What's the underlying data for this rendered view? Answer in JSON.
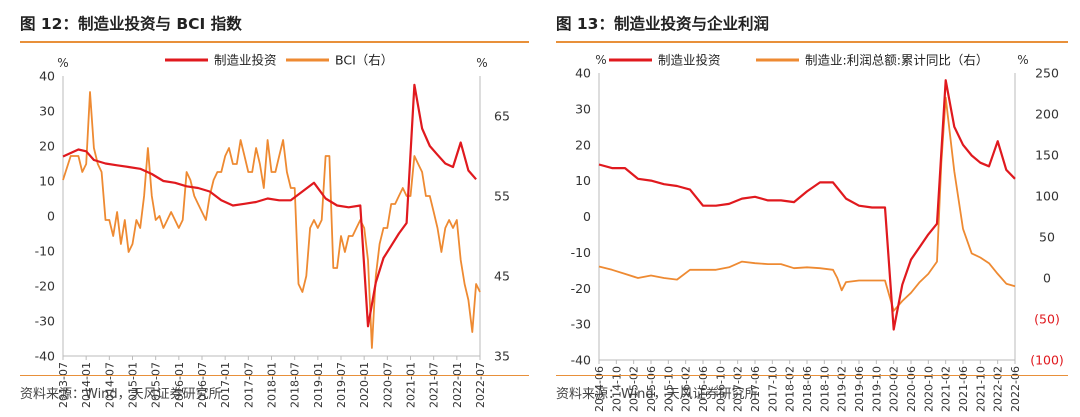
{
  "charts": [
    {
      "title": "图 12：制造业投资与 BCI 指数",
      "source": "资料来源：Wind，天风证券研究所",
      "chart_data": {
        "type": "line",
        "left_unit": "%",
        "right_unit": "%",
        "ylim_left": [
          -40,
          40
        ],
        "ylim_right": [
          35,
          70
        ],
        "yticks_left": [
          "40",
          "30",
          "20",
          "10",
          "0",
          "-10",
          "-20",
          "-30",
          "-40"
        ],
        "yticks_right": [
          "65",
          "55",
          "45",
          "35"
        ],
        "xlim": [
          "2013-07",
          "2022-07"
        ],
        "x_ticks": [
          "2013-07",
          "2014-01",
          "2014-07",
          "2015-01",
          "2015-07",
          "2016-01",
          "2016-07",
          "2017-01",
          "2017-07",
          "2018-01",
          "2018-07",
          "2019-01",
          "2019-07",
          "2020-01",
          "2020-07",
          "2021-01",
          "2021-07",
          "2022-01",
          "2022-07"
        ],
        "series": [
          {
            "name": "制造业投资",
            "axis": "left",
            "color": "#e0191e",
            "x": [
              "2013-07",
              "2013-09",
              "2013-11",
              "2014-01",
              "2014-03",
              "2014-06",
              "2014-09",
              "2014-12",
              "2015-03",
              "2015-06",
              "2015-09",
              "2015-12",
              "2016-03",
              "2016-06",
              "2016-09",
              "2016-12",
              "2017-03",
              "2017-06",
              "2017-09",
              "2017-12",
              "2018-03",
              "2018-06",
              "2018-09",
              "2018-12",
              "2019-03",
              "2019-06",
              "2019-09",
              "2019-12",
              "2020-02",
              "2020-04",
              "2020-06",
              "2020-08",
              "2020-10",
              "2020-12",
              "2021-02",
              "2021-04",
              "2021-06",
              "2021-08",
              "2021-10",
              "2021-12",
              "2022-02",
              "2022-04",
              "2022-06"
            ],
            "y": [
              17,
              18,
              19,
              18.5,
              16,
              15,
              14.5,
              14,
              13.5,
              12,
              10,
              9.5,
              8.5,
              8,
              7,
              4.5,
              3,
              3.5,
              4,
              5,
              4.5,
              4.5,
              7,
              9.5,
              5,
              3,
              2.5,
              3,
              -31.5,
              -19,
              -12,
              -8.5,
              -5,
              -2,
              37.5,
              25,
              20,
              17.5,
              15,
              14,
              21,
              13,
              10.5
            ]
          },
          {
            "name": "BCI（右）",
            "axis": "right",
            "color": "#ee8a32",
            "x": [
              "2013-07",
              "2013-09",
              "2013-11",
              "2013-12",
              "2014-01",
              "2014-02",
              "2014-03",
              "2014-04",
              "2014-05",
              "2014-06",
              "2014-07",
              "2014-08",
              "2014-09",
              "2014-10",
              "2014-11",
              "2014-12",
              "2015-01",
              "2015-02",
              "2015-03",
              "2015-04",
              "2015-05",
              "2015-06",
              "2015-07",
              "2015-08",
              "2015-09",
              "2015-10",
              "2015-11",
              "2015-12",
              "2016-01",
              "2016-02",
              "2016-03",
              "2016-04",
              "2016-05",
              "2016-06",
              "2016-07",
              "2016-08",
              "2016-09",
              "2016-10",
              "2016-11",
              "2016-12",
              "2017-01",
              "2017-02",
              "2017-03",
              "2017-04",
              "2017-05",
              "2017-06",
              "2017-07",
              "2017-08",
              "2017-09",
              "2017-10",
              "2017-11",
              "2017-12",
              "2018-01",
              "2018-02",
              "2018-03",
              "2018-04",
              "2018-05",
              "2018-06",
              "2018-07",
              "2018-08",
              "2018-09",
              "2018-10",
              "2018-11",
              "2018-12",
              "2019-01",
              "2019-02",
              "2019-03",
              "2019-04",
              "2019-05",
              "2019-06",
              "2019-07",
              "2019-08",
              "2019-09",
              "2019-10",
              "2019-11",
              "2019-12",
              "2020-01",
              "2020-02",
              "2020-03",
              "2020-04",
              "2020-05",
              "2020-06",
              "2020-07",
              "2020-08",
              "2020-09",
              "2020-10",
              "2020-11",
              "2020-12",
              "2021-01",
              "2021-02",
              "2021-03",
              "2021-04",
              "2021-05",
              "2021-06",
              "2021-07",
              "2021-08",
              "2021-09",
              "2021-10",
              "2021-11",
              "2021-12",
              "2022-01",
              "2022-02",
              "2022-03",
              "2022-04",
              "2022-05",
              "2022-06",
              "2022-07"
            ],
            "y": [
              57,
              60,
              60,
              58,
              59,
              68,
              61,
              59,
              58,
              52,
              52,
              50,
              53,
              49,
              52,
              48,
              49,
              52,
              51,
              55,
              61,
              55,
              52,
              52.5,
              51,
              52,
              53,
              52,
              51,
              52,
              58,
              57,
              55,
              54,
              53,
              52,
              55,
              57,
              58,
              58,
              60,
              61,
              59,
              59,
              62,
              60,
              58,
              58,
              61,
              59,
              56,
              62,
              58,
              58,
              60,
              62,
              58,
              56,
              56,
              44,
              43,
              45,
              51,
              52,
              51,
              52,
              60,
              60,
              46,
              46,
              50,
              48,
              50,
              50,
              51,
              52,
              51,
              47,
              36,
              45,
              49,
              51,
              51,
              54,
              54,
              55,
              56,
              55,
              55,
              60,
              59,
              58,
              55,
              55,
              53,
              51,
              48,
              51,
              52,
              51,
              52,
              47,
              44,
              42,
              38,
              44,
              43
            ]
          }
        ]
      }
    },
    {
      "title": "图 13：制造业投资与企业利润",
      "source": "资料来源：Wind，天风证券研究所",
      "chart_data": {
        "type": "line",
        "left_unit": "%",
        "right_unit": "%",
        "ylim_left": [
          -40,
          40
        ],
        "ylim_right": [
          -100,
          250
        ],
        "yticks_left": [
          "40",
          "30",
          "20",
          "10",
          "0",
          "-10",
          "-20",
          "-30",
          "-40"
        ],
        "yticks_right": [
          "250",
          "200",
          "150",
          "100",
          "50",
          "0",
          "(50)",
          "(100)"
        ],
        "xlim": [
          "2014-06",
          "2022-06"
        ],
        "x_ticks": [
          "2014-06",
          "2014-10",
          "2015-02",
          "2015-06",
          "2015-10",
          "2016-02",
          "2016-06",
          "2016-10",
          "2017-02",
          "2017-06",
          "2017-10",
          "2018-02",
          "2018-06",
          "2018-10",
          "2019-02",
          "2019-06",
          "2019-10",
          "2020-02",
          "2020-06",
          "2020-10",
          "2021-02",
          "2021-06",
          "2021-10",
          "2022-02",
          "2022-06"
        ],
        "series": [
          {
            "name": "制造业投资",
            "axis": "left",
            "color": "#e0191e",
            "x": [
              "2014-06",
              "2014-09",
              "2014-12",
              "2015-03",
              "2015-06",
              "2015-09",
              "2015-12",
              "2016-03",
              "2016-06",
              "2016-09",
              "2016-12",
              "2017-03",
              "2017-06",
              "2017-09",
              "2017-12",
              "2018-03",
              "2018-06",
              "2018-09",
              "2018-12",
              "2019-03",
              "2019-06",
              "2019-09",
              "2019-12",
              "2020-02",
              "2020-04",
              "2020-06",
              "2020-08",
              "2020-10",
              "2020-12",
              "2021-02",
              "2021-04",
              "2021-06",
              "2021-08",
              "2021-10",
              "2021-12",
              "2022-02",
              "2022-04",
              "2022-06"
            ],
            "y": [
              14.5,
              13.5,
              13.5,
              10.5,
              10,
              9,
              8.5,
              7.5,
              3,
              3,
              3.5,
              5,
              5.5,
              4.5,
              4.5,
              4,
              7,
              9.5,
              9.5,
              5,
              3,
              2.5,
              2.5,
              -31.5,
              -19,
              -12,
              -8.5,
              -5,
              -2,
              38,
              25,
              20,
              17,
              15,
              14,
              21,
              13,
              10.5
            ]
          },
          {
            "name": "制造业:利润总额:累计同比（右）",
            "axis": "right",
            "color": "#ee8a32",
            "x": [
              "2014-06",
              "2014-09",
              "2014-12",
              "2015-03",
              "2015-06",
              "2015-09",
              "2015-12",
              "2016-03",
              "2016-06",
              "2016-09",
              "2016-12",
              "2017-03",
              "2017-06",
              "2017-09",
              "2017-12",
              "2018-03",
              "2018-06",
              "2018-09",
              "2018-12",
              "2019-01",
              "2019-02",
              "2019-03",
              "2019-06",
              "2019-09",
              "2019-12",
              "2020-02",
              "2020-04",
              "2020-06",
              "2020-08",
              "2020-10",
              "2020-12",
              "2021-01",
              "2021-02",
              "2021-04",
              "2021-06",
              "2021-08",
              "2021-10",
              "2021-12",
              "2022-02",
              "2022-04",
              "2022-06"
            ],
            "y": [
              14,
              10,
              5,
              0,
              3,
              0,
              -2,
              10,
              10,
              10,
              13,
              20,
              18,
              17,
              17,
              12,
              13,
              12,
              10,
              0,
              -15,
              -5,
              -3,
              -3,
              -3,
              -40,
              -28,
              -18,
              -5,
              5,
              20,
              140,
              220,
              130,
              60,
              30,
              25,
              18,
              5,
              -7,
              -10
            ]
          }
        ]
      }
    }
  ]
}
